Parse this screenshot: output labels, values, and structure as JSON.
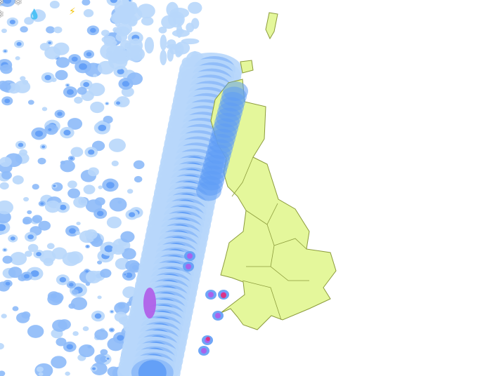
{
  "map": {
    "land_color": "#e4f79b",
    "border_color": "#8c9c3c",
    "precipitation_colors": {
      "light": "#b8d7fb",
      "moderate": "#8dbaf8",
      "heavy": "#5f9cf6",
      "very_heavy": "#b05be8",
      "extreme": "#e0307a"
    }
  },
  "weather_icons": [
    {
      "name": "snowflake-icon",
      "glyph": "❄"
    },
    {
      "name": "snowflake-icon",
      "glyph": "❄"
    },
    {
      "name": "raindrop-icon",
      "glyph": "💧"
    },
    {
      "name": "snowflake-icon",
      "glyph": "❄"
    },
    {
      "name": "lightning-icon",
      "glyph": "⚡"
    }
  ]
}
